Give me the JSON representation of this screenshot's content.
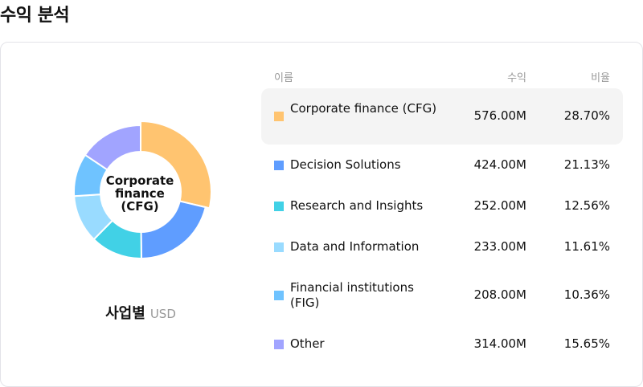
{
  "page_title": "수익 분석",
  "chart_caption": {
    "title": "사업별",
    "unit": "USD"
  },
  "center_label": "Corporate finance (CFG)",
  "table": {
    "headers": {
      "name": "이름",
      "revenue": "수익",
      "ratio": "비율"
    },
    "rows": [
      {
        "name": "Corporate finance (CFG)",
        "revenue": "576.00M",
        "ratio": "28.70%",
        "color": "#FFC470",
        "active": true
      },
      {
        "name": "Decision Solutions",
        "revenue": "424.00M",
        "ratio": "21.13%",
        "color": "#5F9DFF"
      },
      {
        "name": "Research and Insights",
        "revenue": "252.00M",
        "ratio": "12.56%",
        "color": "#41D1E6"
      },
      {
        "name": "Data and Information",
        "revenue": "233.00M",
        "ratio": "11.61%",
        "color": "#99DBFF"
      },
      {
        "name": "Financial institutions (FIG)",
        "revenue": "208.00M",
        "ratio": "10.36%",
        "color": "#6FC3FF"
      },
      {
        "name": "Other",
        "revenue": "314.00M",
        "ratio": "15.65%",
        "color": "#A1A4FF"
      }
    ]
  },
  "chart_data": {
    "type": "pie",
    "categories": [
      "Corporate finance (CFG)",
      "Decision Solutions",
      "Research and Insights",
      "Data and Information",
      "Financial institutions (FIG)",
      "Other"
    ],
    "values": [
      576,
      424,
      252,
      233,
      208,
      314
    ],
    "unit": "USD",
    "highlighted": "Corporate finance (CFG)"
  }
}
